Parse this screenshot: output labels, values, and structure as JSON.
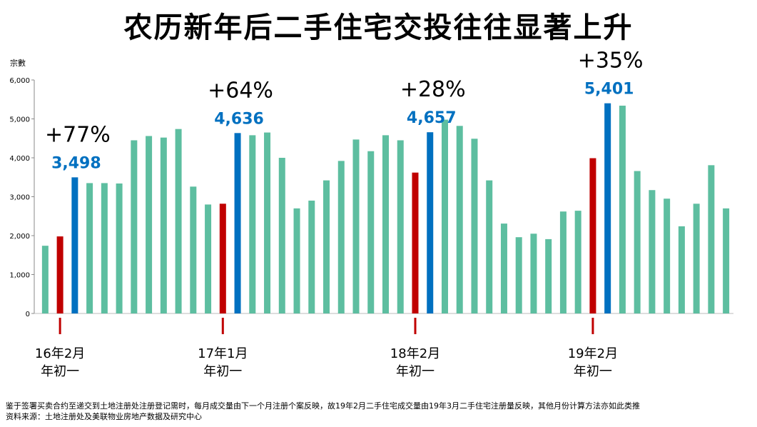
{
  "title": "农历新年后二手住宅交投往往显著上升",
  "chart_data": {
    "type": "bar",
    "ylabel": "宗數",
    "ylim": [
      0,
      6000
    ],
    "yticks": [
      "6,000",
      "5,000",
      "4,000",
      "3,000",
      "2,000",
      "1,000",
      "0"
    ],
    "values": [
      1740,
      1980,
      3498,
      3350,
      3350,
      3340,
      4450,
      4560,
      4520,
      4740,
      3260,
      2800,
      2820,
      4636,
      4580,
      4650,
      4000,
      2700,
      2900,
      3420,
      3920,
      4470,
      4170,
      4580,
      4450,
      3620,
      4657,
      4980,
      4820,
      4490,
      3420,
      2310,
      1960,
      2050,
      1910,
      2620,
      2640,
      3990,
      5401,
      5340,
      3660,
      3170,
      2950,
      2240,
      2820,
      3810,
      2700
    ],
    "colors": {
      "default": "#5dbea0",
      "new_year": "#c00000",
      "after_new_year": "#0070c0"
    },
    "new_year_index": [
      1,
      12,
      25,
      37
    ],
    "after_new_year_index": [
      2,
      13,
      26,
      38
    ],
    "annotations": [
      {
        "value_label": "3,498",
        "change": "+77%",
        "marker_index": 1,
        "date": "16年2月",
        "sub": "年初一"
      },
      {
        "value_label": "4,636",
        "change": "+64%",
        "marker_index": 12,
        "date": "17年1月",
        "sub": "年初一"
      },
      {
        "value_label": "4,657",
        "change": "+28%",
        "marker_index": 25,
        "date": "18年2月",
        "sub": "年初一"
      },
      {
        "value_label": "5,401",
        "change": "+35%",
        "marker_index": 37,
        "date": "19年2月",
        "sub": "年初一"
      }
    ]
  },
  "notes": {
    "line1": "鉴于签署买卖合约至递交到土地注册处注册登记需时，每月成交量由下一个月注册个案反映，故19年2月二手住宅成交量由19年3月二手住宅注册量反映，其他月份计算方法亦如此类推",
    "line2": "资料来源：土地注册处及美联物业房地产数据及研究中心"
  }
}
